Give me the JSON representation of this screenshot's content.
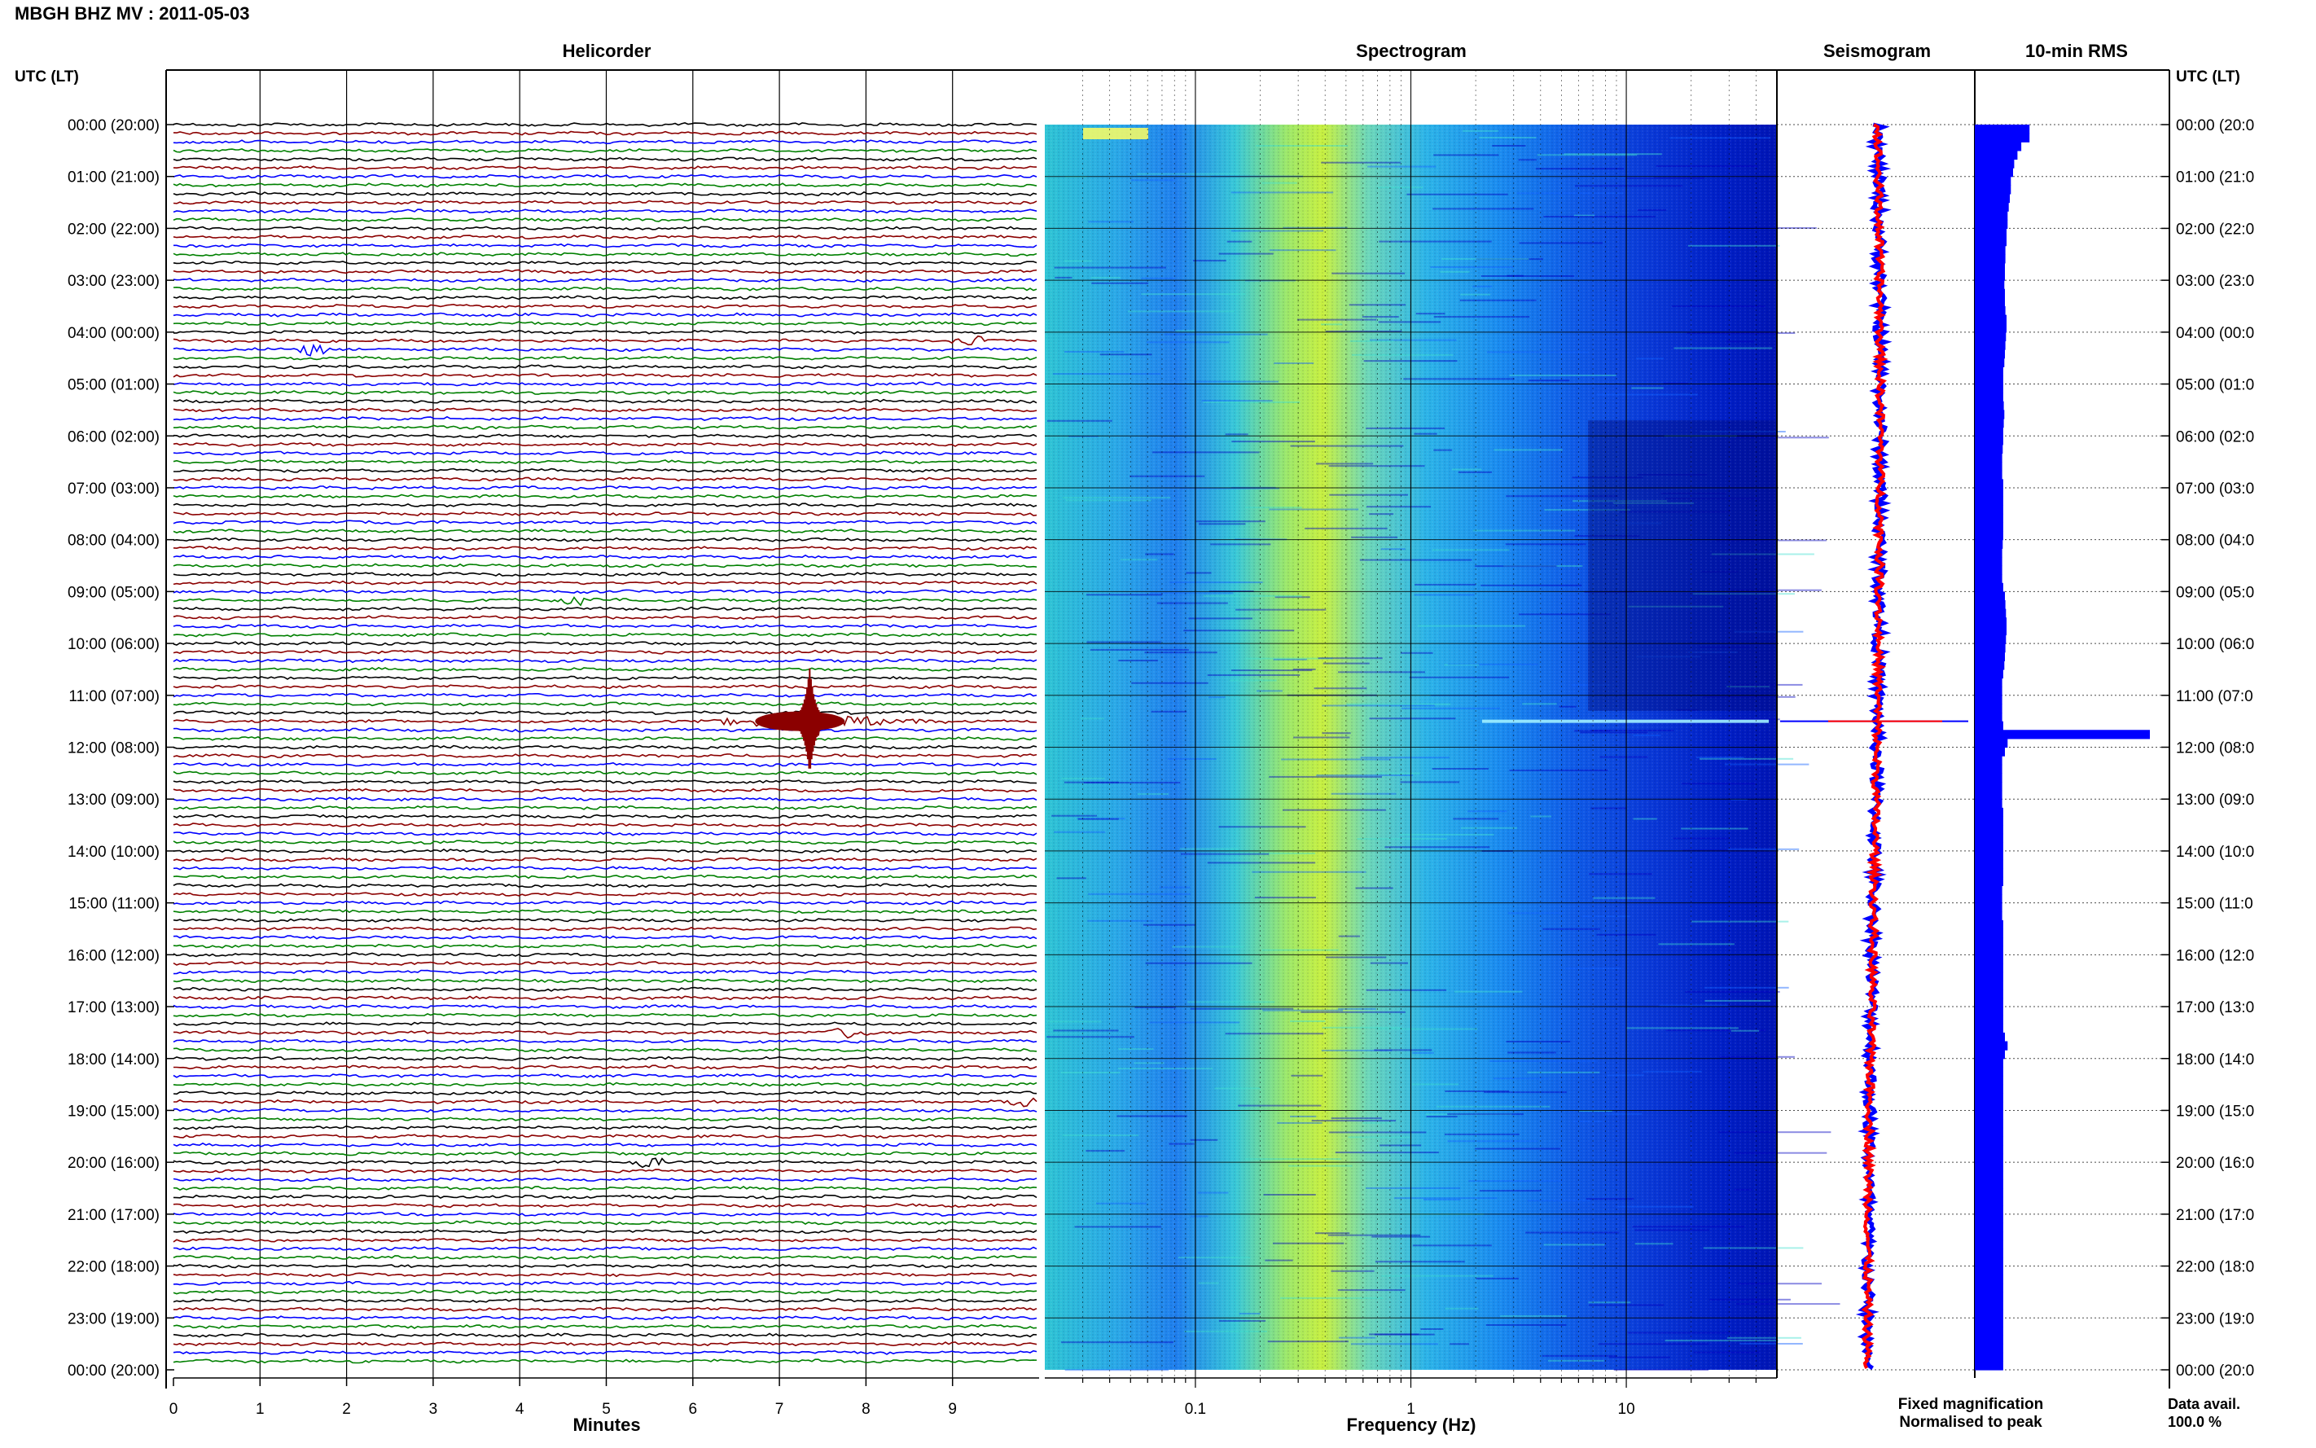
{
  "header": {
    "title": "MBGH BHZ MV : 2011-05-03",
    "utc_left": "UTC (LT)",
    "utc_right": "UTC (LT)"
  },
  "panels": {
    "helicorder": "Helicorder",
    "spectrogram": "Spectrogram",
    "seismogram": "Seismogram",
    "rms": "10-min RMS"
  },
  "axes": {
    "minutes_label": "Minutes",
    "frequency_label": "Frequency (Hz)",
    "minute_ticks": [
      "0",
      "1",
      "2",
      "3",
      "4",
      "5",
      "6",
      "7",
      "8",
      "9"
    ],
    "frequency_ticks": [
      "0.1",
      "1",
      "10"
    ],
    "time_labels_left": [
      "00:00 (20:00)",
      "01:00 (21:00)",
      "02:00 (22:00)",
      "03:00 (23:00)",
      "04:00 (00:00)",
      "05:00 (01:00)",
      "06:00 (02:00)",
      "07:00 (03:00)",
      "08:00 (04:00)",
      "09:00 (05:00)",
      "10:00 (06:00)",
      "11:00 (07:00)",
      "12:00 (08:00)",
      "13:00 (09:00)",
      "14:00 (10:00)",
      "15:00 (11:00)",
      "16:00 (12:00)",
      "17:00 (13:00)",
      "18:00 (14:00)",
      "19:00 (15:00)",
      "20:00 (16:00)",
      "21:00 (17:00)",
      "22:00 (18:00)",
      "23:00 (19:00)",
      "00:00 (20:00)"
    ],
    "time_labels_right": [
      "00:00 (20:0",
      "01:00 (21:0",
      "02:00 (22:0",
      "03:00 (23:0",
      "04:00 (00:0",
      "05:00 (01:0",
      "06:00 (02:0",
      "07:00 (03:0",
      "08:00 (04:0",
      "09:00 (05:0",
      "10:00 (06:0",
      "11:00 (07:0",
      "12:00 (08:0",
      "13:00 (09:0",
      "14:00 (10:0",
      "15:00 (11:0",
      "16:00 (12:0",
      "17:00 (13:0",
      "18:00 (14:0",
      "19:00 (15:0",
      "20:00 (16:0",
      "21:00 (17:0",
      "22:00 (18:0",
      "23:00 (19:0",
      "00:00 (20:0"
    ]
  },
  "legend": {
    "fixed": "Fixed magnification",
    "normalised": "Normalised to peak",
    "fixed_color": "#0000ff",
    "normalised_color": "#ff0000"
  },
  "footer": {
    "data_avail_label": "Data avail.",
    "data_avail_value": "100.0 %"
  },
  "chart_data": {
    "type": "heatmap",
    "helicorder": {
      "rows": 144,
      "minutes_per_row": 10,
      "xlim": [
        0,
        10
      ],
      "trace_colors": [
        "#000000",
        "#8b0000",
        "#0000ff",
        "#008000"
      ],
      "events": [
        {
          "hour": 11.5,
          "minute": 7.35,
          "amplitude": "large",
          "color": "#8b0000"
        },
        {
          "hour": 9.17,
          "minute": 4.7,
          "amplitude": "small",
          "color": "#000000"
        },
        {
          "hour": 4.33,
          "minute": 1.6,
          "amplitude": "small",
          "color": "#008000"
        },
        {
          "hour": 4.17,
          "minute": 9.2,
          "amplitude": "small",
          "color": "#8b0000"
        },
        {
          "hour": 17.5,
          "minute": 7.8,
          "amplitude": "small",
          "color": "#8b0000"
        },
        {
          "hour": 18.83,
          "minute": 9.8,
          "amplitude": "small",
          "color": "#000000"
        },
        {
          "hour": 20.0,
          "minute": 5.5,
          "amplitude": "small",
          "color": "#008000"
        }
      ]
    },
    "spectrogram": {
      "xscale": "log",
      "xlim": [
        0.02,
        50
      ],
      "colormap": [
        "#00008b",
        "#0000ff",
        "#1e90ff",
        "#40e0d0",
        "#adff2f",
        "#ffff00"
      ],
      "peak_band_hz": [
        0.2,
        0.5
      ]
    },
    "seismogram": {
      "series": [
        {
          "name": "Fixed magnification",
          "color": "#0000ff"
        },
        {
          "name": "Normalised to peak",
          "color": "#ff0000"
        }
      ],
      "event_hour": 11.5
    },
    "rms": {
      "color": "#0000ff",
      "interval_minutes": 10,
      "values": [
        100,
        100,
        85,
        78,
        72,
        70,
        66,
        66,
        64,
        62,
        60,
        60,
        58,
        58,
        56,
        56,
        55,
        55,
        54,
        55,
        55,
        56,
        58,
        58,
        57,
        56,
        55,
        54,
        52,
        52,
        52,
        52,
        53,
        54,
        53,
        52,
        52,
        51,
        50,
        50,
        50,
        52,
        52,
        52,
        52,
        52,
        52,
        52,
        51,
        50,
        50,
        50,
        50,
        52,
        55,
        56,
        57,
        58,
        58,
        57,
        56,
        55,
        54,
        52,
        50,
        50,
        50,
        50,
        50,
        52,
        320,
        60,
        55,
        50,
        50,
        50,
        50,
        50,
        50,
        52,
        52,
        52,
        52,
        52,
        52,
        52,
        52,
        52,
        50,
        50,
        50,
        50,
        52,
        52,
        52,
        52,
        52,
        52,
        52,
        52,
        52,
        52,
        52,
        52,
        52,
        55,
        60,
        55,
        52,
        52,
        52,
        52,
        52,
        52,
        52,
        52,
        52,
        52,
        52,
        52,
        52,
        52,
        52,
        52,
        52,
        52,
        52,
        52,
        52,
        52,
        52,
        52,
        52,
        52,
        52,
        52,
        52,
        52,
        52,
        52,
        52,
        52,
        52,
        52
      ]
    }
  }
}
